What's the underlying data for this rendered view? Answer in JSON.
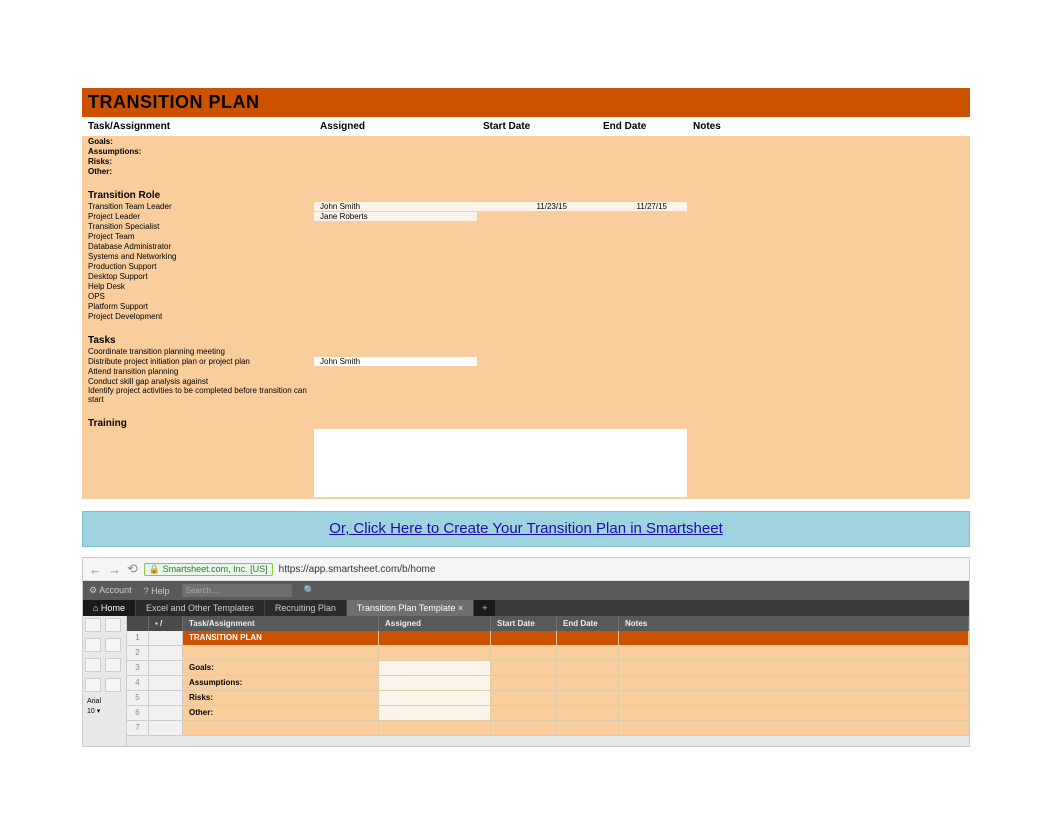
{
  "plan": {
    "title": "TRANSITION PLAN",
    "title_bg": "#cc5200",
    "sheet_bg": "#f9ce9c",
    "light_bg": "#fcf4ea",
    "white_bg": "#ffffff",
    "columns": {
      "task": "Task/Assignment",
      "assigned": "Assigned",
      "start": "Start Date",
      "end": "End Date",
      "notes": "Notes"
    },
    "meta_rows": [
      {
        "label": "Goals:"
      },
      {
        "label": "Assumptions:"
      },
      {
        "label": "Risks:"
      },
      {
        "label": "Other:"
      }
    ],
    "sections": [
      {
        "heading": "Transition Role",
        "rows": [
          {
            "task": "Transition Team Leader",
            "assigned": "John Smith",
            "start": "11/23/15",
            "end": "11/27/15"
          },
          {
            "task": "Project Leader",
            "assigned": "Jane Roberts"
          },
          {
            "task": "Transition Specialist"
          },
          {
            "task": "Project Team"
          },
          {
            "task": "Database Administrator"
          },
          {
            "task": "Systems and Networking"
          },
          {
            "task": "Production Support"
          },
          {
            "task": "Desktop Support"
          },
          {
            "task": "Help Desk"
          },
          {
            "task": "OPS"
          },
          {
            "task": "Platform Support"
          },
          {
            "task": "Project Development"
          }
        ]
      },
      {
        "heading": "Tasks",
        "rows": [
          {
            "task": "Coordinate transition planning meeting"
          },
          {
            "task": "Distribute project initiation plan or project plan",
            "assigned": "John Smith"
          },
          {
            "task": "Attend transition planning"
          },
          {
            "task": "Conduct skill gap analysis against"
          },
          {
            "task": "Identify project activities to be completed before transition can start"
          }
        ]
      },
      {
        "heading": "Training",
        "rows": []
      }
    ]
  },
  "cta": {
    "text": "Or, Click Here to Create Your Transition Plan in Smartsheet",
    "bg": "#9fd3e0",
    "link_color": "#1a0dab"
  },
  "smartsheet": {
    "browser": {
      "back": "←",
      "fwd": "→",
      "reload": "⟲",
      "lock_label": "Smartsheet.com, Inc. [US]",
      "url": "https://app.smartsheet.com/b/home"
    },
    "menubar": {
      "account": "Account",
      "help": "? Help",
      "search_placeholder": "Search…",
      "search_icon": "🔍"
    },
    "tabs": [
      {
        "label": "Home",
        "kind": "home",
        "icon": "⌂"
      },
      {
        "label": "Excel and Other Templates"
      },
      {
        "label": "Recruiting Plan"
      },
      {
        "label": "Transition Plan Template",
        "active": true,
        "close": "×"
      },
      {
        "label": "+",
        "kind": "plus"
      }
    ],
    "toolbar_font": "Arial",
    "toolbar_size": "10",
    "grid": {
      "columns": {
        "task": "Task/Assignment",
        "assigned": "Assigned",
        "start": "Start Date",
        "end": "End Date",
        "notes": "Notes"
      },
      "rows": [
        {
          "n": "1",
          "task": "TRANSITION PLAN",
          "title": true
        },
        {
          "n": "2",
          "task": ""
        },
        {
          "n": "3",
          "task": "Goals:",
          "aswhite": true
        },
        {
          "n": "4",
          "task": "Assumptions:",
          "aswhite": true
        },
        {
          "n": "5",
          "task": "Risks:",
          "aswhite": true
        },
        {
          "n": "6",
          "task": "Other:",
          "aswhite": true
        },
        {
          "n": "7",
          "task": ""
        }
      ]
    }
  }
}
